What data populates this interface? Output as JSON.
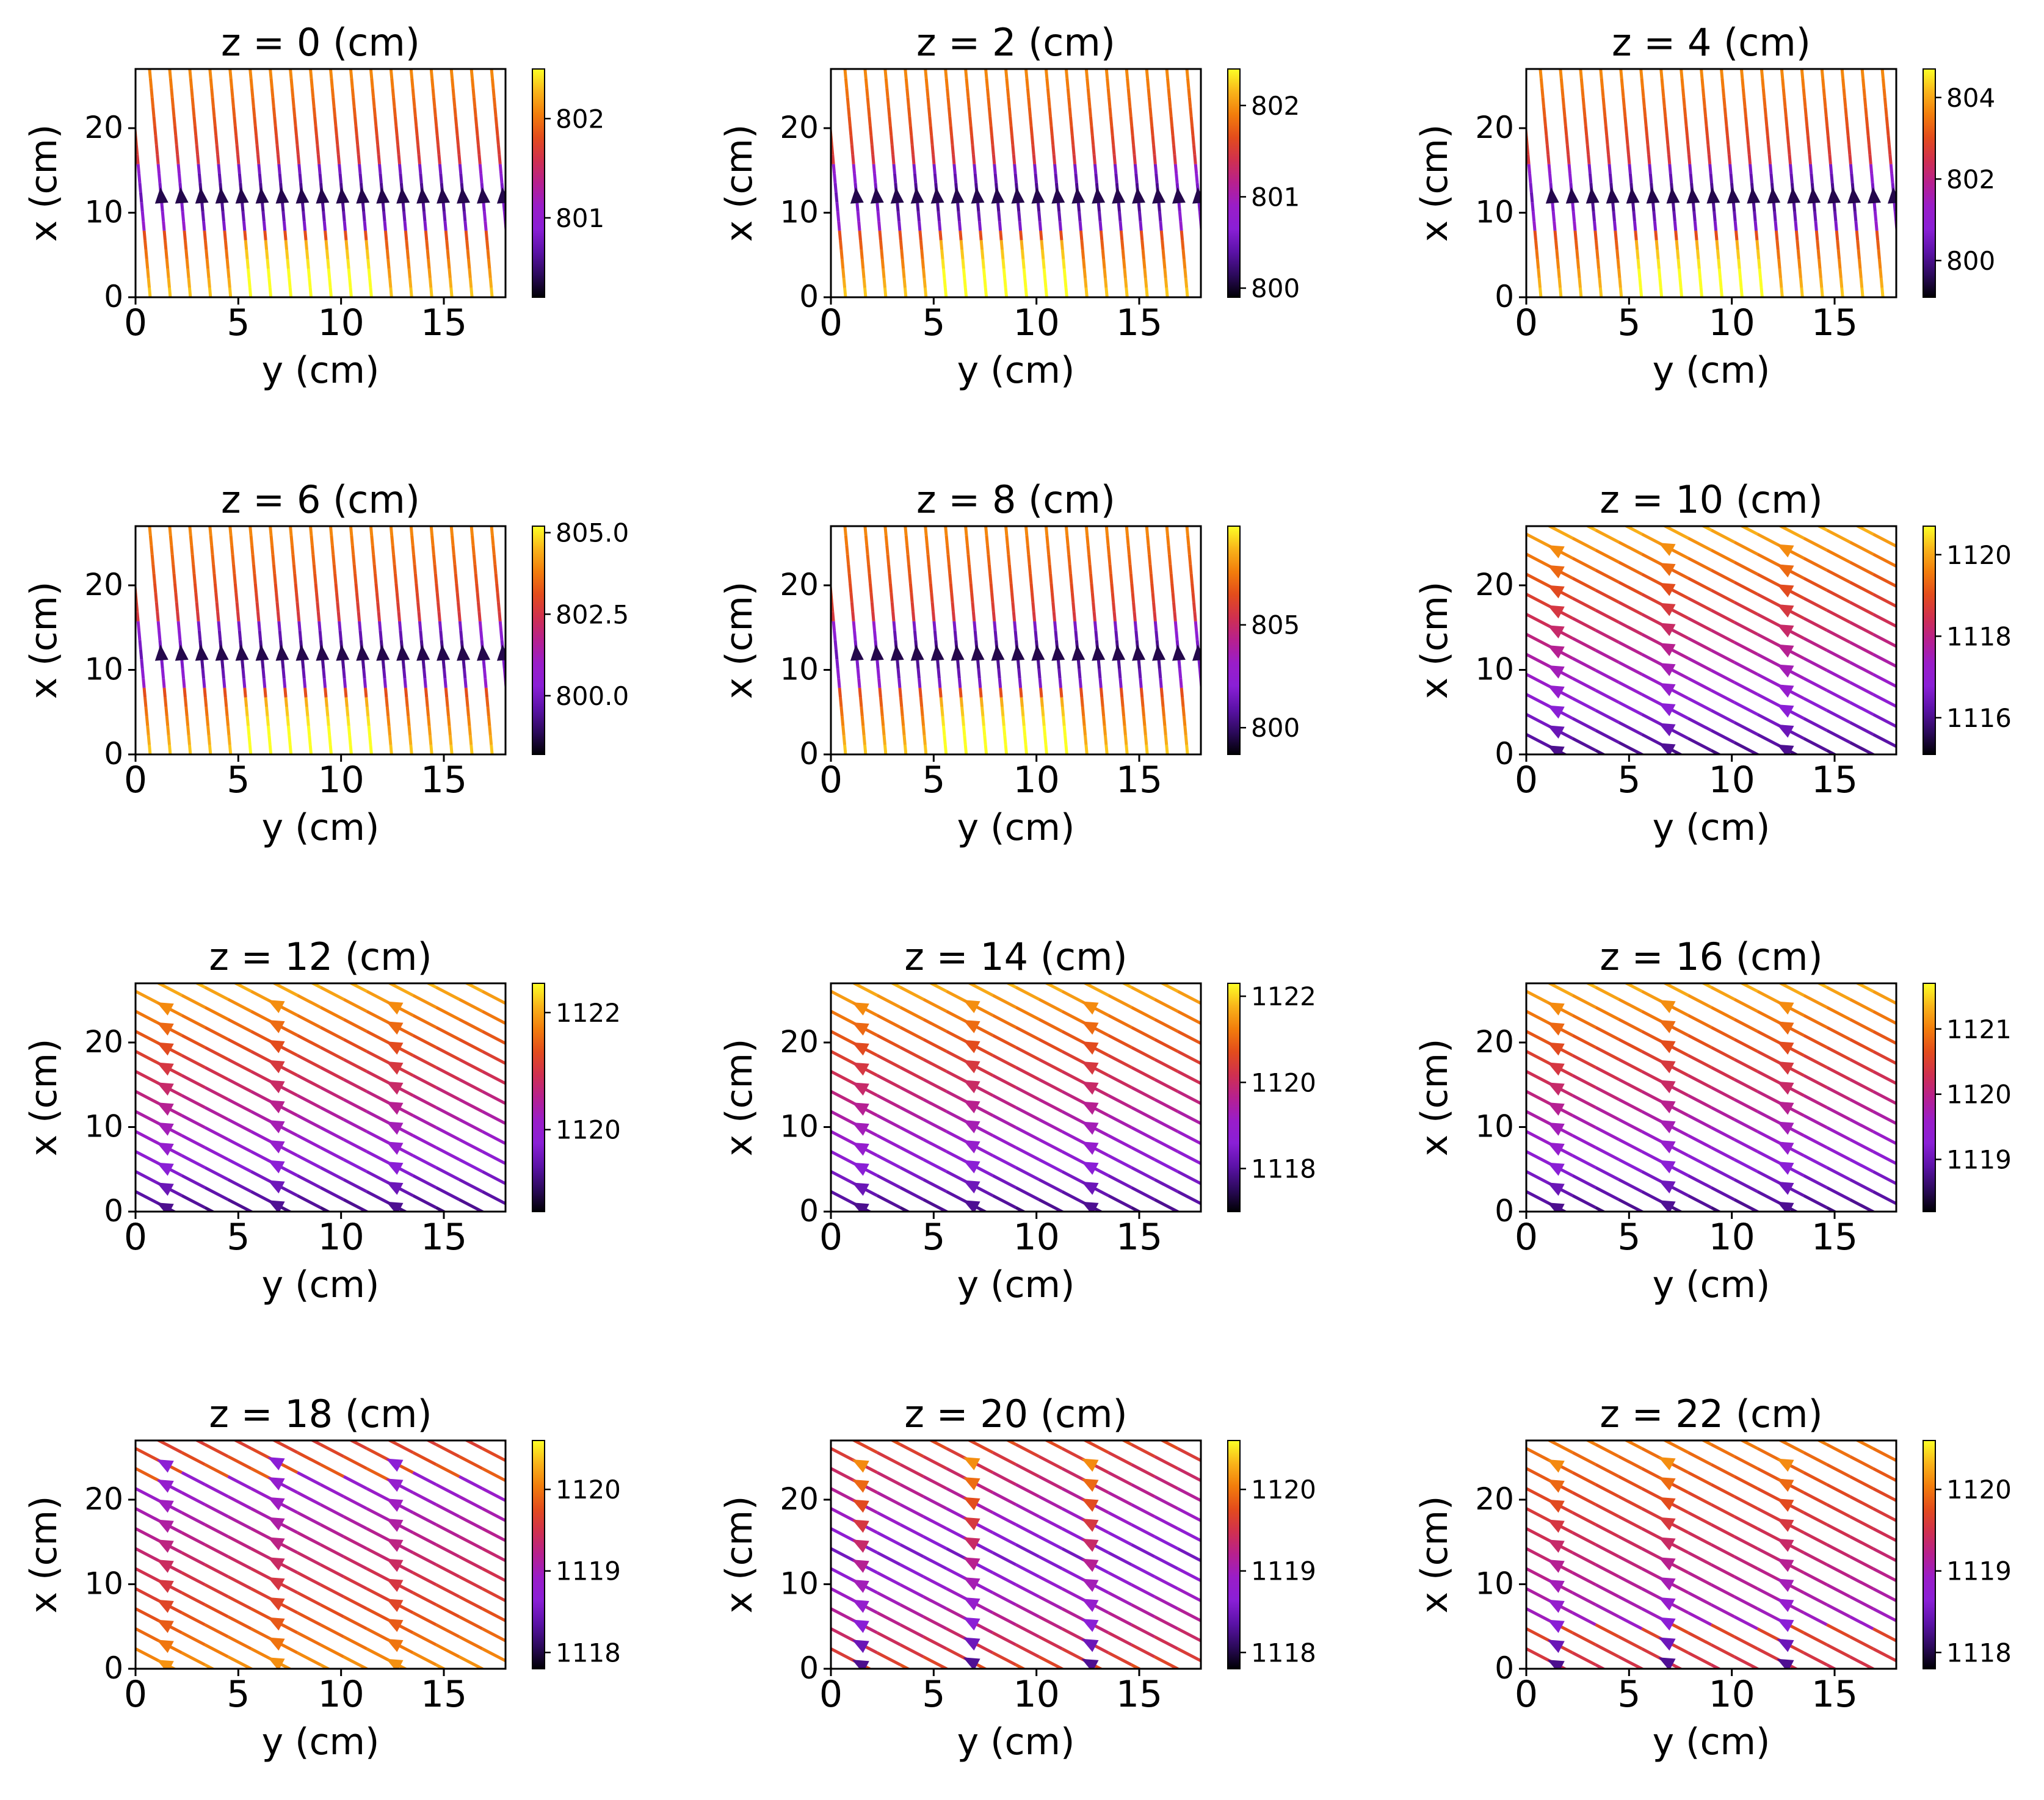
{
  "chart_data": [
    {
      "type": "streamplot",
      "title": "z = 0 (cm)",
      "xlabel": "y (cm)",
      "ylabel": "x (cm)",
      "xlim": [
        0,
        18
      ],
      "ylim": [
        0,
        27
      ],
      "xticks": [
        0,
        5,
        10,
        15
      ],
      "yticks": [
        0,
        10,
        20
      ],
      "colorbar": {
        "range": [
          800.2,
          802.5
        ],
        "ticks": [
          801,
          802
        ]
      },
      "pattern": "vertical"
    },
    {
      "type": "streamplot",
      "title": "z = 2 (cm)",
      "xlabel": "y (cm)",
      "ylabel": "x (cm)",
      "xlim": [
        0,
        18
      ],
      "ylim": [
        0,
        27
      ],
      "xticks": [
        0,
        5,
        10,
        15
      ],
      "yticks": [
        0,
        10,
        20
      ],
      "colorbar": {
        "range": [
          799.9,
          802.4
        ],
        "ticks": [
          800,
          801,
          802
        ]
      },
      "pattern": "vertical"
    },
    {
      "type": "streamplot",
      "title": "z = 4 (cm)",
      "xlabel": "y (cm)",
      "ylabel": "x (cm)",
      "xlim": [
        0,
        18
      ],
      "ylim": [
        0,
        27
      ],
      "xticks": [
        0,
        5,
        10,
        15
      ],
      "yticks": [
        0,
        10,
        20
      ],
      "colorbar": {
        "range": [
          799.1,
          804.7
        ],
        "ticks": [
          800,
          802,
          804
        ]
      },
      "pattern": "vertical"
    },
    {
      "type": "streamplot",
      "title": "z = 6 (cm)",
      "xlabel": "y (cm)",
      "ylabel": "x (cm)",
      "xlim": [
        0,
        18
      ],
      "ylim": [
        0,
        27
      ],
      "xticks": [
        0,
        5,
        10,
        15
      ],
      "yticks": [
        0,
        10,
        20
      ],
      "colorbar": {
        "range": [
          798.2,
          805.2
        ],
        "ticks": [
          800.0,
          802.5,
          805.0
        ]
      },
      "pattern": "vertical"
    },
    {
      "type": "streamplot",
      "title": "z = 8 (cm)",
      "xlabel": "y (cm)",
      "ylabel": "x (cm)",
      "xlim": [
        0,
        18
      ],
      "ylim": [
        0,
        27
      ],
      "xticks": [
        0,
        5,
        10,
        15
      ],
      "yticks": [
        0,
        10,
        20
      ],
      "colorbar": {
        "range": [
          798.7,
          809.8
        ],
        "ticks": [
          800,
          805
        ]
      },
      "pattern": "vertical"
    },
    {
      "type": "streamplot",
      "title": "z = 10 (cm)",
      "xlabel": "y (cm)",
      "ylabel": "x (cm)",
      "xlim": [
        0,
        18
      ],
      "ylim": [
        0,
        27
      ],
      "xticks": [
        0,
        5,
        10,
        15
      ],
      "yticks": [
        0,
        10,
        20
      ],
      "colorbar": {
        "range": [
          1115.1,
          1120.7
        ],
        "ticks": [
          1116,
          1118,
          1120
        ]
      },
      "pattern": "diagonal-lowhigh"
    },
    {
      "type": "streamplot",
      "title": "z = 12 (cm)",
      "xlabel": "y (cm)",
      "ylabel": "x (cm)",
      "xlim": [
        0,
        18
      ],
      "ylim": [
        0,
        27
      ],
      "xticks": [
        0,
        5,
        10,
        15
      ],
      "yticks": [
        0,
        10,
        20
      ],
      "colorbar": {
        "range": [
          1118.6,
          1122.5
        ],
        "ticks": [
          1120,
          1122
        ]
      },
      "pattern": "diagonal-lowhigh"
    },
    {
      "type": "streamplot",
      "title": "z = 14 (cm)",
      "xlabel": "y (cm)",
      "ylabel": "x (cm)",
      "xlim": [
        0,
        18
      ],
      "ylim": [
        0,
        27
      ],
      "xticks": [
        0,
        5,
        10,
        15
      ],
      "yticks": [
        0,
        10,
        20
      ],
      "colorbar": {
        "range": [
          1117.0,
          1122.3
        ],
        "ticks": [
          1118,
          1120,
          1122
        ]
      },
      "pattern": "diagonal-lowhigh"
    },
    {
      "type": "streamplot",
      "title": "z = 16 (cm)",
      "xlabel": "y (cm)",
      "ylabel": "x (cm)",
      "xlim": [
        0,
        18
      ],
      "ylim": [
        0,
        27
      ],
      "xticks": [
        0,
        5,
        10,
        15
      ],
      "yticks": [
        0,
        10,
        20
      ],
      "colorbar": {
        "range": [
          1118.2,
          1121.7
        ],
        "ticks": [
          1119,
          1120,
          1121
        ]
      },
      "pattern": "diagonal-lowhigh"
    },
    {
      "type": "streamplot",
      "title": "z = 18 (cm)",
      "xlabel": "y (cm)",
      "ylabel": "x (cm)",
      "xlim": [
        0,
        18
      ],
      "ylim": [
        0,
        27
      ],
      "xticks": [
        0,
        5,
        10,
        15
      ],
      "yticks": [
        0,
        10,
        20
      ],
      "colorbar": {
        "range": [
          1117.8,
          1120.6
        ],
        "ticks": [
          1118,
          1119,
          1120
        ]
      },
      "pattern": "diagonal-highlow"
    },
    {
      "type": "streamplot",
      "title": "z = 20 (cm)",
      "xlabel": "y (cm)",
      "ylabel": "x (cm)",
      "xlim": [
        0,
        18
      ],
      "ylim": [
        0,
        27
      ],
      "xticks": [
        0,
        5,
        10,
        15
      ],
      "yticks": [
        0,
        10,
        20
      ],
      "colorbar": {
        "range": [
          1117.8,
          1120.6
        ],
        "ticks": [
          1118,
          1119,
          1120
        ]
      },
      "pattern": "diagonal-mixed"
    },
    {
      "type": "streamplot",
      "title": "z = 22 (cm)",
      "xlabel": "y (cm)",
      "ylabel": "x (cm)",
      "xlim": [
        0,
        18
      ],
      "ylim": [
        0,
        27
      ],
      "xticks": [
        0,
        5,
        10,
        15
      ],
      "yticks": [
        0,
        10,
        20
      ],
      "colorbar": {
        "range": [
          1117.8,
          1120.6
        ],
        "ticks": [
          1118,
          1119,
          1120
        ]
      },
      "pattern": "diagonal-mixed"
    }
  ],
  "colormap": [
    "#000004",
    "#2d0a5e",
    "#5c12a8",
    "#8a1fd6",
    "#9a1dc8",
    "#b7208f",
    "#d0304f",
    "#e34c1c",
    "#f27d0c",
    "#f9b41a",
    "#fcff26"
  ]
}
